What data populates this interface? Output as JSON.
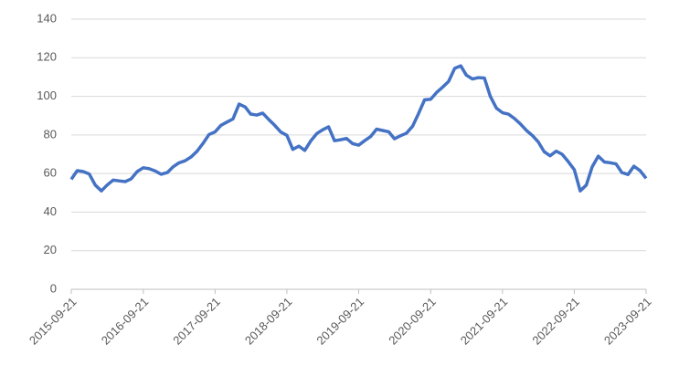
{
  "chart_data": {
    "type": "line",
    "x": [
      "2015-09-21",
      "2015-10-21",
      "2015-11-21",
      "2015-12-21",
      "2016-01-21",
      "2016-02-21",
      "2016-03-21",
      "2016-04-21",
      "2016-05-21",
      "2016-06-21",
      "2016-07-21",
      "2016-08-21",
      "2016-09-21",
      "2016-10-21",
      "2016-11-21",
      "2016-12-21",
      "2017-01-21",
      "2017-02-21",
      "2017-03-21",
      "2017-04-21",
      "2017-05-21",
      "2017-06-21",
      "2017-07-21",
      "2017-08-21",
      "2017-09-21",
      "2017-10-21",
      "2017-11-21",
      "2017-12-21",
      "2018-01-21",
      "2018-02-21",
      "2018-03-21",
      "2018-04-21",
      "2018-05-21",
      "2018-06-21",
      "2018-07-21",
      "2018-08-21",
      "2018-09-21",
      "2018-10-21",
      "2018-11-21",
      "2018-12-21",
      "2019-01-21",
      "2019-02-21",
      "2019-03-21",
      "2019-04-21",
      "2019-05-21",
      "2019-06-21",
      "2019-07-21",
      "2019-08-21",
      "2019-09-21",
      "2019-10-21",
      "2019-11-21",
      "2019-12-21",
      "2020-01-21",
      "2020-02-21",
      "2020-03-21",
      "2020-04-21",
      "2020-05-21",
      "2020-06-21",
      "2020-07-21",
      "2020-08-21",
      "2020-09-21",
      "2020-10-21",
      "2020-11-21",
      "2020-12-21",
      "2021-01-21",
      "2021-02-21",
      "2021-03-21",
      "2021-04-21",
      "2021-05-21",
      "2021-06-21",
      "2021-07-21",
      "2021-08-21",
      "2021-09-21",
      "2021-10-21",
      "2021-11-21",
      "2021-12-21",
      "2022-01-21",
      "2022-02-21",
      "2022-03-21",
      "2022-04-21",
      "2022-05-21",
      "2022-06-21",
      "2022-07-21",
      "2022-08-21",
      "2022-09-21",
      "2022-10-21",
      "2022-11-21",
      "2022-12-21",
      "2023-01-21",
      "2023-02-21",
      "2023-03-21",
      "2023-04-21",
      "2023-05-21",
      "2023-06-21",
      "2023-07-21",
      "2023-08-21",
      "2023-09-21"
    ],
    "series": [
      {
        "color": "#4472c4",
        "values": [
          57,
          61.5,
          61,
          59.8,
          54,
          51,
          54,
          56.6,
          56.2,
          55.8,
          57.2,
          61,
          63,
          62.5,
          61.3,
          59.6,
          60.5,
          63.6,
          65.5,
          66.6,
          68.5,
          71.5,
          75.5,
          80.2,
          81.6,
          85,
          86.7,
          88.3,
          96,
          94.5,
          90.8,
          90.3,
          91.3,
          88,
          85,
          81.5,
          79.8,
          72.5,
          74.2,
          72,
          77,
          80.8,
          82.6,
          84.2,
          77,
          77.5,
          78.2,
          75.5,
          74.7,
          77,
          79.2,
          83,
          82.3,
          81.6,
          78,
          79.6,
          80.9,
          84.5,
          91,
          98.2,
          98.5,
          102,
          104.8,
          107.7,
          114.5,
          115.8,
          111,
          109,
          109.7,
          109.5,
          100,
          93.9,
          91.5,
          90.8,
          88.5,
          85.7,
          82.3,
          79.6,
          76.5,
          71.3,
          69.2,
          71.6,
          70,
          66.2,
          62,
          51,
          54,
          63.5,
          69,
          66,
          65.6,
          65,
          60.5,
          59.5,
          63.8,
          61.5,
          57.5
        ]
      }
    ],
    "xlim": [
      "2015-09-21",
      "2023-09-21"
    ],
    "xticks": [
      "2015-09-21",
      "2016-09-21",
      "2017-09-21",
      "2018-09-21",
      "2019-09-21",
      "2020-09-21",
      "2021-09-21",
      "2022-09-21",
      "2023-09-21"
    ],
    "ylim": [
      0,
      140
    ],
    "yticks": [
      0,
      20,
      40,
      60,
      80,
      100,
      120,
      140
    ],
    "grid": true
  }
}
